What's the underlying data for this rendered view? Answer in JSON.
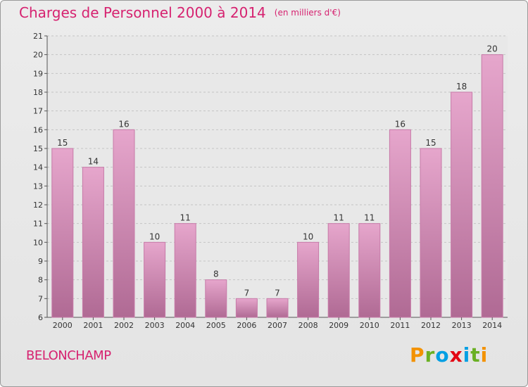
{
  "title": "Charges de Personnel 2000 à 2014",
  "subtitle": "(en milliers d'€)",
  "commune": "BELONCHAMP",
  "logo": {
    "letters": [
      "P",
      "r",
      "o",
      "x",
      "i",
      "t",
      "i"
    ],
    "colors": [
      "#f39200",
      "#6ab023",
      "#009fe3",
      "#e30613",
      "#009fe3",
      "#6ab023",
      "#f39200"
    ]
  },
  "colors": {
    "title": "#d62270",
    "bar_top": "#e6a6cc",
    "bar_bottom": "#b06a94",
    "bar_stroke": "#c77aa8"
  },
  "chart_data": {
    "type": "bar",
    "categories": [
      "2000",
      "2001",
      "2002",
      "2003",
      "2004",
      "2005",
      "2006",
      "2007",
      "2008",
      "2009",
      "2010",
      "2011",
      "2012",
      "2013",
      "2014"
    ],
    "values": [
      15,
      14,
      16,
      10,
      11,
      8,
      7,
      7,
      10,
      11,
      11,
      16,
      15,
      18,
      20
    ],
    "ylim": [
      6,
      21
    ],
    "yticks": [
      "6",
      "7",
      "8",
      "9",
      "10",
      "11",
      "12",
      "13",
      "14",
      "15",
      "16",
      "17",
      "18",
      "19",
      "20",
      "21"
    ],
    "grid": true,
    "data_labels": [
      "15",
      "14",
      "16",
      "10",
      "11",
      "8",
      "7",
      "7",
      "10",
      "11",
      "11",
      "16",
      "15",
      "18",
      "20"
    ]
  }
}
